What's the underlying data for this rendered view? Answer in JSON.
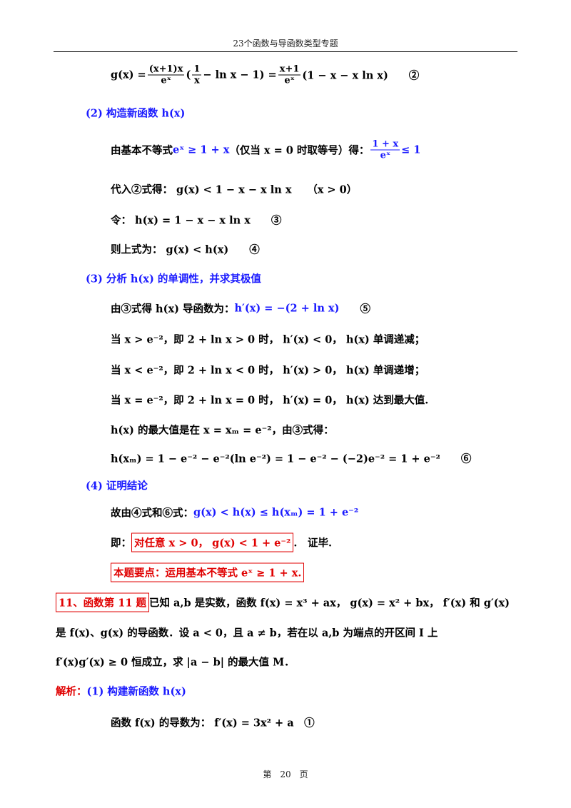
{
  "header": {
    "title": "23个函数与导函数类型专题"
  },
  "footer": {
    "page": "第　20　页"
  },
  "lines": [
    {
      "segments": [
        {
          "text": "g(x) = "
        },
        {
          "num": "(x+1)x",
          "den": "eˣ"
        },
        {
          "text": "("
        },
        {
          "num": "1",
          "den": "x"
        },
        {
          "text": " − ln x − 1) = "
        },
        {
          "num": "x+1",
          "den": "eˣ"
        },
        {
          "text": "(1 − x − x ln x)　　②"
        }
      ]
    },
    {
      "segments": [
        {
          "text": "(2) 构造新函数 h(x)",
          "color": "#1a1aff"
        }
      ]
    },
    {
      "segments": [
        {
          "text": "由基本不等式 "
        },
        {
          "text": "eˣ ≥ 1 + x",
          "color": "#1a1aff"
        },
        {
          "text": "（仅当 x = 0 时取等号）得："
        },
        {
          "num": "1 + x",
          "den": "eˣ",
          "color": "#1a1aff"
        },
        {
          "text": " ≤ 1",
          "color": "#1a1aff"
        }
      ]
    },
    {
      "segments": [
        {
          "text": "代入②式得： g(x) < 1 − x − x ln x　　（x > 0）"
        }
      ]
    },
    {
      "segments": [
        {
          "text": "令： h(x) = 1 − x − x ln x　　③"
        }
      ]
    },
    {
      "segments": [
        {
          "text": "则上式为： g(x) < h(x)　　④"
        }
      ]
    },
    {
      "segments": [
        {
          "text": "(3) 分析 h(x) 的单调性，并求其极值",
          "color": "#1a1aff"
        }
      ]
    },
    {
      "segments": [
        {
          "text": "由③式得 h(x) 导函数为： "
        },
        {
          "text": "h′(x) = −(2 + ln x)",
          "color": "#1a1aff"
        },
        {
          "text": "　　⑤"
        }
      ]
    },
    {
      "segments": [
        {
          "text": "当 x > e⁻²，即 2 + ln x > 0 时， h′(x) < 0， h(x) 单调递减；"
        }
      ]
    },
    {
      "segments": [
        {
          "text": "当 x < e⁻²，即 2 + ln x < 0 时， h′(x) > 0， h(x) 单调递增；"
        }
      ]
    },
    {
      "segments": [
        {
          "text": "当 x = e⁻²，即 2 + ln x = 0 时， h′(x) = 0， h(x) 达到最大值."
        }
      ]
    },
    {
      "segments": [
        {
          "text": "h(x) 的最大值是在 x = xₘ = e⁻²，由③式得："
        }
      ]
    },
    {
      "segments": [
        {
          "text": "h(xₘ) = 1 − e⁻² − e⁻²(ln e⁻²) = 1 − e⁻² − (−2)e⁻² = 1 + e⁻²　　⑥"
        }
      ]
    },
    {
      "segments": [
        {
          "text": "(4) 证明结论",
          "color": "#1a1aff"
        }
      ]
    },
    {
      "segments": [
        {
          "text": "故由④式和⑥式： "
        },
        {
          "text": "g(x) < h(x) ≤ h(xₘ) = 1 + e⁻²",
          "color": "#1a1aff"
        }
      ]
    },
    {
      "segments": [
        {
          "text": "即："
        },
        {
          "text": "对任意 x > 0， g(x) < 1 + e⁻²",
          "color": "#e00000",
          "box": true
        },
        {
          "text": ".　证毕."
        }
      ]
    },
    {
      "segments": [
        {
          "text": "本题要点：运用基本不等式 eˣ ≥ 1 + x.",
          "color": "#e00000",
          "box": true
        }
      ]
    },
    {
      "segments": [
        {
          "text": "11、函数第 11 题",
          "color": "#e00000",
          "box": true
        },
        {
          "text": "已知 a,b 是实数，函数 f(x) = x³ + ax， g(x) = x² + bx， f′(x) 和 g′(x)"
        }
      ]
    },
    {
      "segments": [
        {
          "text": "是 f(x)、g(x) 的导函数．设 a < 0，且 a ≠ b，若在以 a,b 为端点的开区间 I 上"
        }
      ]
    },
    {
      "segments": [
        {
          "text": "f′(x)g′(x) ≥ 0 恒成立，求 |a − b| 的最大值 M．"
        }
      ]
    },
    {
      "segments": [
        {
          "text": "解析：",
          "color": "#e00000"
        },
        {
          "text": "(1) 构建新函数 h(x)",
          "color": "#1a1aff"
        }
      ]
    },
    {
      "segments": [
        {
          "text": "函数 f(x) 的导数为： f′(x) = 3x² + a　①"
        }
      ]
    }
  ]
}
